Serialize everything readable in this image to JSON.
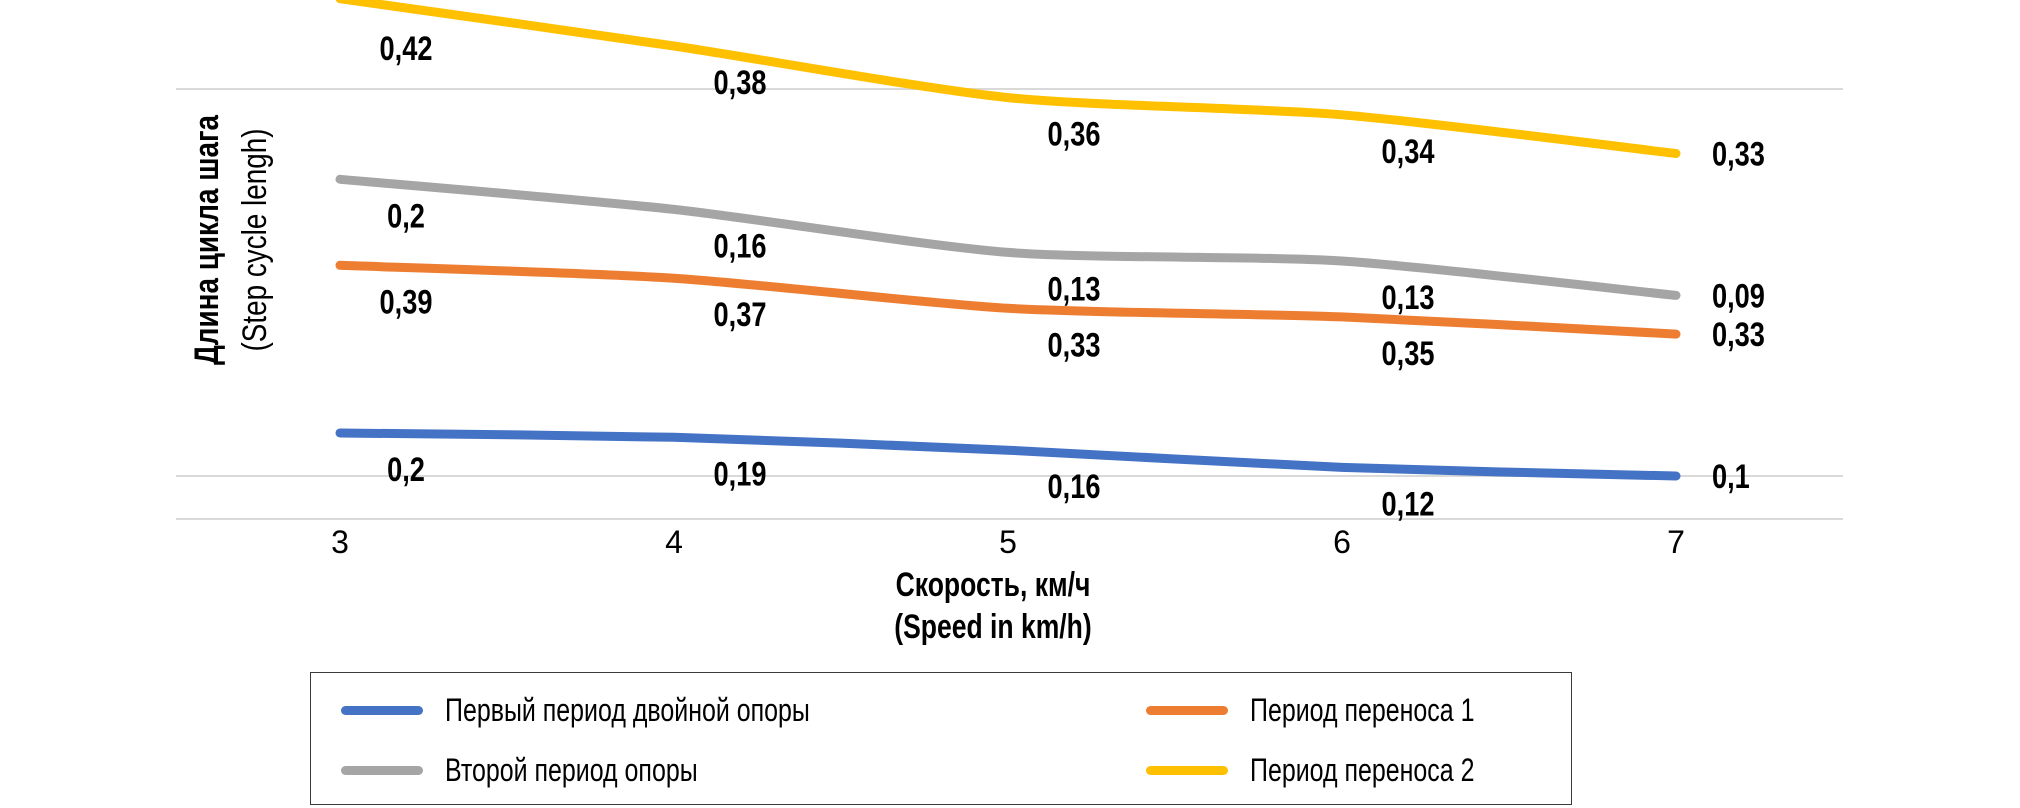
{
  "chart_data": {
    "type": "line",
    "stacked": true,
    "title": "",
    "xlabel_lines": [
      "Скорость, км/ч",
      "(Speed in km/h)"
    ],
    "ylabel_lines": [
      "Длина цикла шага",
      "(Step cycle lengh)"
    ],
    "categories": [
      "3",
      "4",
      "5",
      "6",
      "7"
    ],
    "ylim": [
      0,
      1.2
    ],
    "gridlines": [
      0.1,
      1.0
    ],
    "grid": true,
    "legend_position": "bottom",
    "series": [
      {
        "name": "Первый период двойной опоры",
        "color": "#4472C4",
        "values": [
          0.2,
          0.19,
          0.16,
          0.12,
          0.1
        ],
        "labels": [
          "0,2",
          "0,19",
          "0,16",
          "0,12",
          "0,1"
        ]
      },
      {
        "name": "Период переноса 1",
        "color": "#ED7D31",
        "values": [
          0.39,
          0.37,
          0.33,
          0.35,
          0.33
        ],
        "labels": [
          "0,39",
          "0,37",
          "0,33",
          "0,35",
          "0,33"
        ]
      },
      {
        "name": "Второй период опоры",
        "color": "#A5A5A5",
        "values": [
          0.2,
          0.16,
          0.13,
          0.13,
          0.09
        ],
        "labels": [
          "0,2",
          "0,16",
          "0,13",
          "0,13",
          "0,09"
        ]
      },
      {
        "name": "Период переноса 2",
        "color": "#FFC000",
        "values": [
          0.42,
          0.38,
          0.36,
          0.34,
          0.33
        ],
        "labels": [
          "0,42",
          "0,38",
          "0,36",
          "0,34",
          "0,33"
        ]
      }
    ]
  },
  "legend": {
    "items": [
      {
        "label": "Первый период двойной опоры",
        "color": "#4472C4"
      },
      {
        "label": "Второй период опоры",
        "color": "#A5A5A5"
      },
      {
        "label": "Период переноса 1",
        "color": "#ED7D31"
      },
      {
        "label": "Период переноса 2",
        "color": "#FFC000"
      }
    ]
  }
}
